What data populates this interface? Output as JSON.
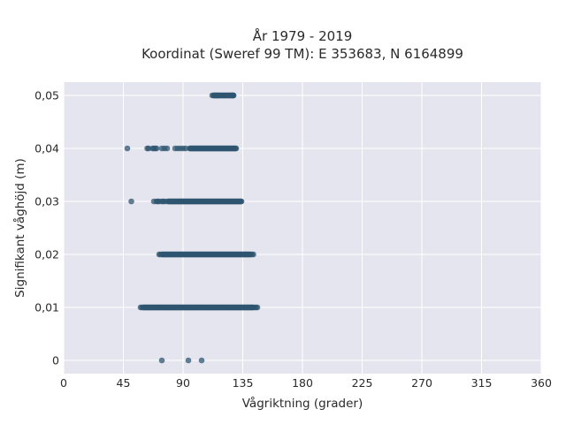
{
  "chart_data": {
    "type": "scatter",
    "title_line1": "År 1979 - 2019",
    "title_line2": "Koordinat (Sweref 99 TM): E 353683, N 6164899",
    "xlabel": "Vågriktning (grader)",
    "ylabel": "Signifikant våghöjd (m)",
    "xlim": [
      0,
      360
    ],
    "ylim": [
      -0.0025,
      0.0525
    ],
    "x_ticks": [
      0,
      45,
      90,
      135,
      180,
      225,
      270,
      315,
      360
    ],
    "x_tick_labels": [
      "0",
      "45",
      "90",
      "135",
      "180",
      "225",
      "270",
      "315",
      "360"
    ],
    "y_ticks": [
      0,
      0.01,
      0.02,
      0.03,
      0.04,
      0.05
    ],
    "y_tick_labels": [
      "0",
      "0,01",
      "0,02",
      "0,03",
      "0,04",
      "0,05"
    ],
    "grid": true,
    "colors": {
      "background": "#e5e5ef",
      "grid": "#ffffff",
      "point": "#2f5670"
    },
    "series": [
      {
        "y": 0.05,
        "dense_range": [
          113,
          128
        ],
        "scattered_x": [
          112,
          114,
          116,
          127,
          128
        ]
      },
      {
        "y": 0.04,
        "dense_range": [
          95,
          130
        ],
        "scattered_x": [
          48,
          63,
          64,
          67,
          68,
          69,
          70,
          74,
          76,
          78,
          84,
          86,
          88,
          90,
          92
        ]
      },
      {
        "y": 0.03,
        "dense_range": [
          79,
          134
        ],
        "scattered_x": [
          51,
          68,
          70,
          71,
          72,
          74,
          75,
          76,
          78
        ]
      },
      {
        "y": 0.02,
        "dense_range": [
          74,
          141
        ],
        "scattered_x": [
          72,
          73,
          142,
          143
        ]
      },
      {
        "y": 0.01,
        "dense_range": [
          60,
          143
        ],
        "scattered_x": [
          58,
          59,
          144,
          145,
          146
        ]
      },
      {
        "y": 0,
        "dense_range": null,
        "scattered_x": [
          74,
          94,
          104
        ]
      }
    ]
  }
}
